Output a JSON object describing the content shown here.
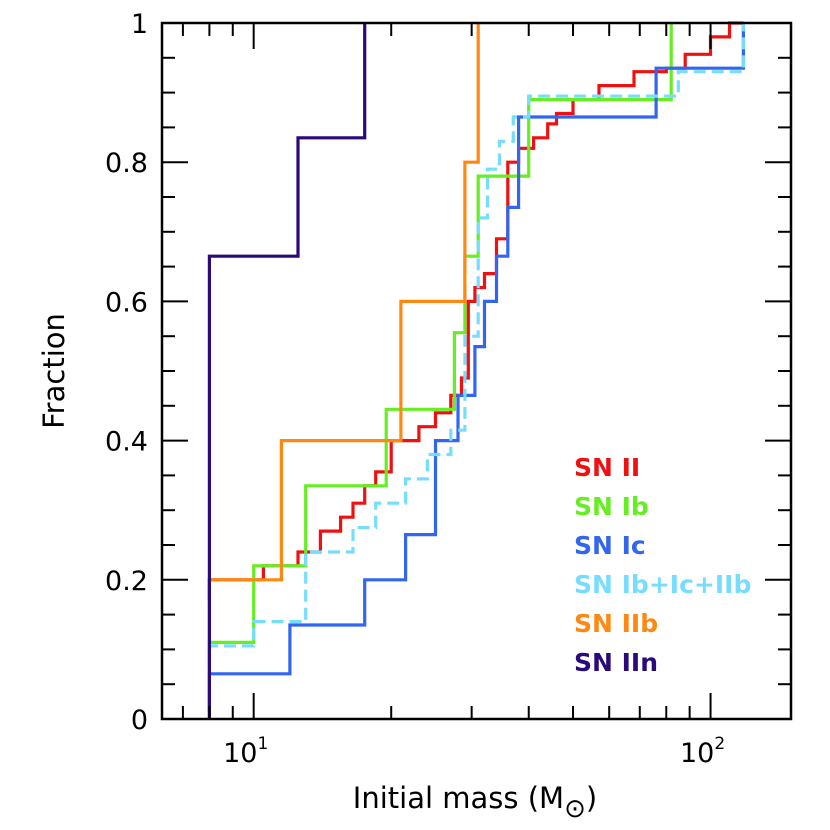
{
  "chart_data": {
    "type": "line",
    "step": true,
    "xlabel_base": "Initial mass (M",
    "xlabel_sub": "⊙",
    "xlabel_close": ")",
    "ylabel": "Fraction",
    "xscale": "log",
    "xlim": [
      6.3,
      150
    ],
    "ylim": [
      0,
      1
    ],
    "x_major_ticks": [
      {
        "value": 10,
        "base": "10",
        "exp": "1"
      },
      {
        "value": 100,
        "base": "10",
        "exp": "2"
      }
    ],
    "y_ticks": [
      {
        "value": 0,
        "label": "0"
      },
      {
        "value": 0.2,
        "label": "0.2"
      },
      {
        "value": 0.4,
        "label": "0.4"
      },
      {
        "value": 0.6,
        "label": "0.6"
      },
      {
        "value": 0.8,
        "label": "0.8"
      },
      {
        "value": 1,
        "label": "1"
      }
    ],
    "grid": false,
    "legend_position": "bottom-right",
    "series": [
      {
        "name": "SN II",
        "color": "#ee1111",
        "dash": false,
        "x": [
          8,
          8,
          10.5,
          10.5,
          12.5,
          12.5,
          14,
          14,
          15.5,
          15.5,
          16.5,
          16.5,
          17.5,
          17.5,
          18.5,
          18.5,
          20,
          20,
          23,
          23,
          25,
          25,
          27,
          27,
          28.5,
          28.5,
          29.5,
          29.5,
          30.5,
          30.5,
          32,
          32,
          34,
          34,
          36,
          36,
          38,
          38,
          41,
          41,
          44,
          44,
          46,
          46,
          50,
          50,
          57,
          57,
          68,
          68,
          80,
          80,
          88,
          88,
          100,
          100,
          110,
          110,
          118,
          118
        ],
        "y": [
          0.17,
          0.2,
          0.2,
          0.22,
          0.22,
          0.24,
          0.24,
          0.27,
          0.27,
          0.29,
          0.29,
          0.31,
          0.31,
          0.335,
          0.335,
          0.355,
          0.355,
          0.4,
          0.4,
          0.42,
          0.42,
          0.44,
          0.44,
          0.465,
          0.465,
          0.49,
          0.49,
          0.6,
          0.6,
          0.62,
          0.62,
          0.64,
          0.64,
          0.69,
          0.69,
          0.8,
          0.8,
          0.82,
          0.82,
          0.835,
          0.835,
          0.855,
          0.855,
          0.87,
          0.87,
          0.89,
          0.89,
          0.91,
          0.91,
          0.93,
          0.93,
          0.935,
          0.935,
          0.955,
          0.955,
          0.98,
          0.98,
          1.0,
          1.0,
          1.0
        ]
      },
      {
        "name": "SN Ib",
        "color": "#66ee22",
        "dash": false,
        "x": [
          8,
          8,
          10,
          10,
          13,
          13,
          19.5,
          19.5,
          27.5,
          27.5,
          29,
          29,
          31,
          31,
          33,
          33,
          36,
          36,
          40,
          40,
          82,
          82
        ],
        "y": [
          0.07,
          0.11,
          0.11,
          0.22,
          0.22,
          0.335,
          0.335,
          0.445,
          0.445,
          0.555,
          0.555,
          0.665,
          0.665,
          0.78,
          0.78,
          0.78,
          0.78,
          0.78,
          0.78,
          0.89,
          0.89,
          1.0
        ]
      },
      {
        "name": "SN Ic",
        "color": "#3366ee",
        "dash": false,
        "x": [
          8,
          8,
          12,
          12,
          17.5,
          17.5,
          21.5,
          21.5,
          25,
          25,
          28,
          28,
          30.5,
          30.5,
          32,
          32,
          34,
          34,
          36,
          36,
          38,
          38,
          76,
          76,
          118,
          118
        ],
        "y": [
          0.01,
          0.065,
          0.065,
          0.135,
          0.135,
          0.2,
          0.2,
          0.265,
          0.265,
          0.4,
          0.4,
          0.465,
          0.465,
          0.535,
          0.535,
          0.6,
          0.6,
          0.665,
          0.665,
          0.735,
          0.735,
          0.865,
          0.865,
          0.935,
          0.935,
          1.0
        ]
      },
      {
        "name": "SN Ib+Ic+IIb",
        "color": "#77ddff",
        "dash": true,
        "x": [
          8,
          8,
          10,
          10,
          13,
          13,
          16.5,
          16.5,
          18.5,
          18.5,
          21.5,
          21.5,
          24,
          24,
          27,
          27,
          29,
          29,
          31,
          31,
          32.5,
          32.5,
          34.5,
          34.5,
          37,
          37,
          40,
          40,
          46,
          46,
          85,
          85,
          118,
          118
        ],
        "y": [
          0.1,
          0.105,
          0.105,
          0.14,
          0.14,
          0.24,
          0.24,
          0.275,
          0.275,
          0.31,
          0.31,
          0.345,
          0.345,
          0.38,
          0.38,
          0.415,
          0.415,
          0.55,
          0.55,
          0.72,
          0.72,
          0.79,
          0.79,
          0.83,
          0.83,
          0.865,
          0.865,
          0.895,
          0.895,
          0.895,
          0.895,
          0.93,
          0.93,
          1.0
        ]
      },
      {
        "name": "SN IIb",
        "color": "#ff8811",
        "dash": false,
        "x": [
          8,
          8,
          11.5,
          11.5,
          21,
          21,
          29,
          29,
          31,
          31
        ],
        "y": [
          0.0,
          0.2,
          0.2,
          0.4,
          0.4,
          0.6,
          0.6,
          0.8,
          0.8,
          1.0
        ]
      },
      {
        "name": "SN IIn",
        "color": "#2a0a7a",
        "dash": false,
        "x": [
          8,
          8,
          12.5,
          12.5,
          17.5,
          17.5
        ],
        "y": [
          0.0,
          0.665,
          0.665,
          0.835,
          0.835,
          1.0
        ]
      }
    ]
  }
}
